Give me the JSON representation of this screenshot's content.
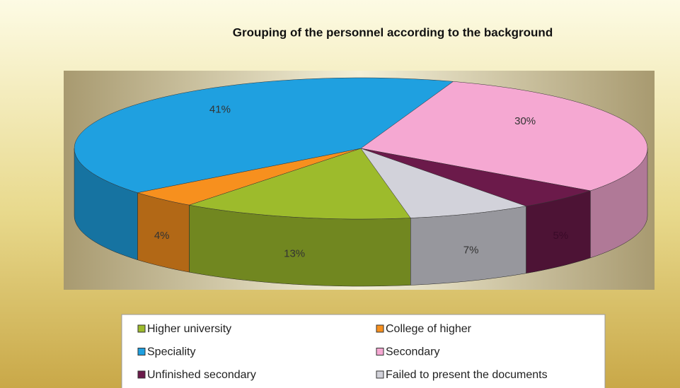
{
  "chart_data": {
    "type": "pie",
    "title": "Grouping of the personnel according to the background",
    "categories": [
      "Higher university",
      "College of higher",
      "Speciality",
      "Secondary",
      "Unfinished secondary",
      "Failed to present the documents"
    ],
    "values": [
      13,
      4,
      41,
      30,
      5,
      7
    ],
    "value_labels": [
      "13%",
      "4%",
      "41%",
      "30%",
      "5%",
      "7%"
    ],
    "colors": [
      "#9dbb2c",
      "#f7901e",
      "#1fa0e0",
      "#f5a8d2",
      "#6b1a4a",
      "#d2d2da"
    ],
    "legend": "bottom"
  }
}
